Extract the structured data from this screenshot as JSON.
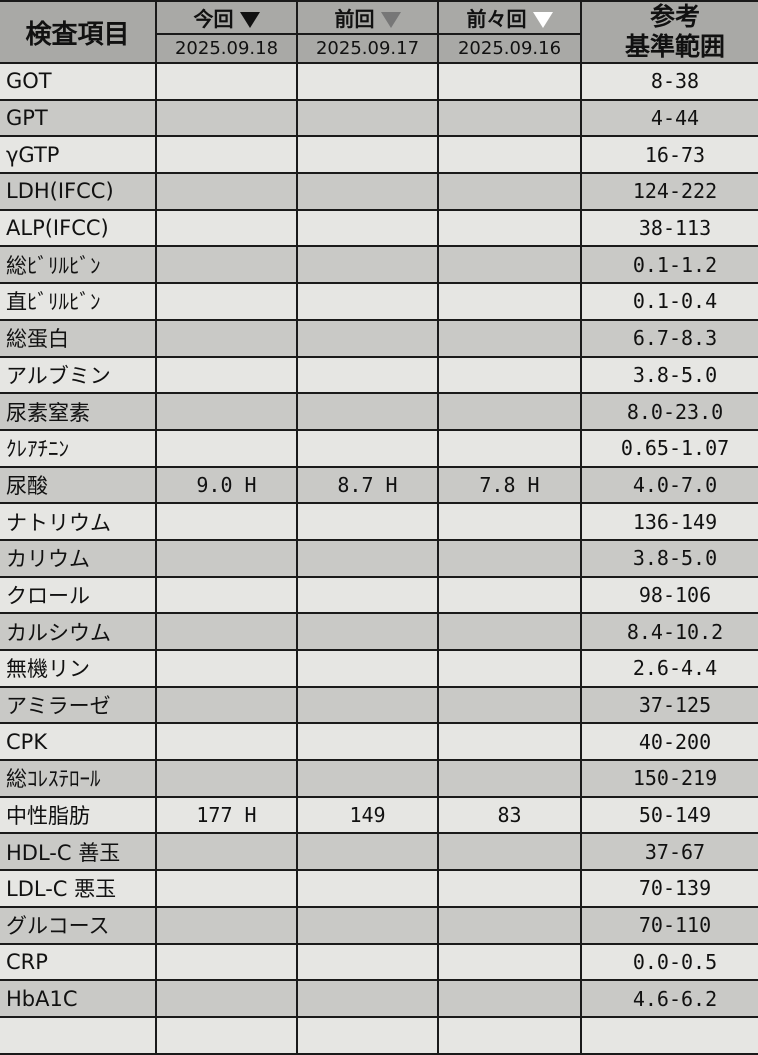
{
  "header": {
    "item_label": "検査項目",
    "columns": [
      {
        "label": "今回",
        "marker": "filled-triangle-down",
        "date": "2025.09.18"
      },
      {
        "label": "前回",
        "marker": "outline-triangle-down",
        "date": "2025.09.17"
      },
      {
        "label": "前々回",
        "marker": "white-triangle-down",
        "date": "2025.09.16"
      }
    ],
    "ref_label_1": "参考",
    "ref_label_2": "基準範囲"
  },
  "rows": [
    {
      "name": "GOT",
      "v1": "",
      "v2": "",
      "v3": "",
      "ref": "8-38"
    },
    {
      "name": "GPT",
      "v1": "",
      "v2": "",
      "v3": "",
      "ref": "4-44"
    },
    {
      "name": "γGTP",
      "v1": "",
      "v2": "",
      "v3": "",
      "ref": "16-73"
    },
    {
      "name": "LDH(IFCC)",
      "v1": "",
      "v2": "",
      "v3": "",
      "ref": "124-222"
    },
    {
      "name": "ALP(IFCC)",
      "v1": "",
      "v2": "",
      "v3": "",
      "ref": "38-113"
    },
    {
      "name": "総ﾋﾞﾘﾙﾋﾞﾝ",
      "v1": "",
      "v2": "",
      "v3": "",
      "ref": "0.1-1.2"
    },
    {
      "name": "直ﾋﾞﾘﾙﾋﾞﾝ",
      "v1": "",
      "v2": "",
      "v3": "",
      "ref": "0.1-0.4"
    },
    {
      "name": "総蛋白",
      "v1": "",
      "v2": "",
      "v3": "",
      "ref": "6.7-8.3"
    },
    {
      "name": "アルブミン",
      "v1": "",
      "v2": "",
      "v3": "",
      "ref": "3.8-5.0"
    },
    {
      "name": "尿素窒素",
      "v1": "",
      "v2": "",
      "v3": "",
      "ref": "8.0-23.0"
    },
    {
      "name": "ｸﾚｱﾁﾆﾝ",
      "v1": "",
      "v2": "",
      "v3": "",
      "ref": "0.65-1.07"
    },
    {
      "name": "尿酸",
      "v1": "9.0 H",
      "v2": "8.7 H",
      "v3": "7.8 H",
      "ref": "4.0-7.0"
    },
    {
      "name": "ナトリウム",
      "v1": "",
      "v2": "",
      "v3": "",
      "ref": "136-149"
    },
    {
      "name": "カリウム",
      "v1": "",
      "v2": "",
      "v3": "",
      "ref": "3.8-5.0"
    },
    {
      "name": "クロール",
      "v1": "",
      "v2": "",
      "v3": "",
      "ref": "98-106"
    },
    {
      "name": "カルシウム",
      "v1": "",
      "v2": "",
      "v3": "",
      "ref": "8.4-10.2"
    },
    {
      "name": "無機リン",
      "v1": "",
      "v2": "",
      "v3": "",
      "ref": "2.6-4.4"
    },
    {
      "name": "アミラーゼ",
      "v1": "",
      "v2": "",
      "v3": "",
      "ref": "37-125"
    },
    {
      "name": "CPK",
      "v1": "",
      "v2": "",
      "v3": "",
      "ref": "40-200"
    },
    {
      "name": "総ｺﾚｽﾃﾛｰﾙ",
      "v1": "",
      "v2": "",
      "v3": "",
      "ref": "150-219"
    },
    {
      "name": "中性脂肪",
      "v1": "177 H",
      "v2": "149",
      "v3": "83",
      "ref": "50-149"
    },
    {
      "name": "HDL-C 善玉",
      "v1": "",
      "v2": "",
      "v3": "",
      "ref": "37-67"
    },
    {
      "name": "LDL-C 悪玉",
      "v1": "",
      "v2": "",
      "v3": "",
      "ref": "70-139"
    },
    {
      "name": "グルコース",
      "v1": "",
      "v2": "",
      "v3": "",
      "ref": "70-110"
    },
    {
      "name": "CRP",
      "v1": "",
      "v2": "",
      "v3": "",
      "ref": "0.0-0.5"
    },
    {
      "name": "HbA1C",
      "v1": "",
      "v2": "",
      "v3": "",
      "ref": "4.6-6.2"
    }
  ]
}
